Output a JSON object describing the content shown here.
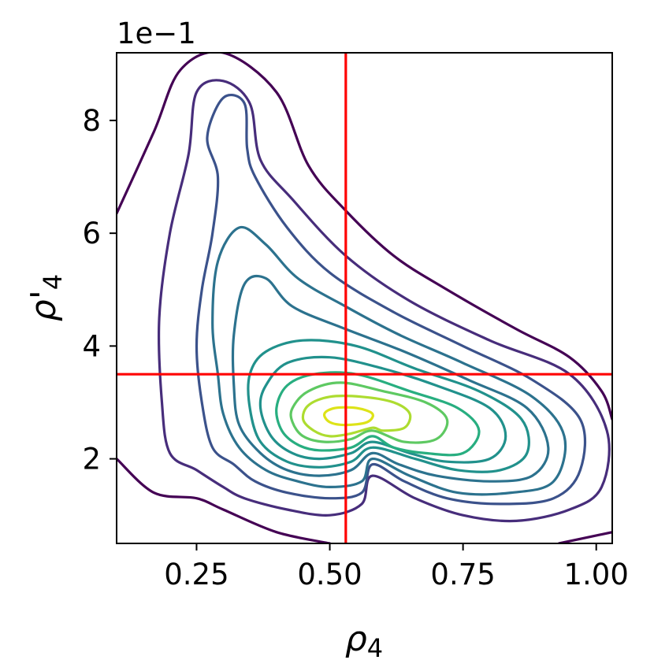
{
  "chart_data": {
    "type": "contour",
    "title": "",
    "xlabel": "ρ",
    "xlabel_sub": "4",
    "ylabel": "ρ'",
    "ylabel_sub": "4",
    "xlim": [
      0.1,
      1.03
    ],
    "ylim": [
      0.05,
      0.92
    ],
    "y_offset_label": "1e−1",
    "x_ticks": [
      {
        "value": 0.25,
        "label": "0.25"
      },
      {
        "value": 0.5,
        "label": "0.50"
      },
      {
        "value": 0.75,
        "label": "0.75"
      },
      {
        "value": 1.0,
        "label": "1.00"
      }
    ],
    "y_ticks": [
      {
        "value": 0.2,
        "label": "2"
      },
      {
        "value": 0.4,
        "label": "4"
      },
      {
        "value": 0.6,
        "label": "6"
      },
      {
        "value": 0.8,
        "label": "8"
      }
    ],
    "colormap": "viridis",
    "peak": {
      "x": 0.53,
      "y": 0.27
    },
    "reference_lines": {
      "x": 0.53,
      "y": 0.35,
      "color": "#ff0000"
    },
    "contour_colors": [
      "#440154",
      "#472d7b",
      "#3b528b",
      "#2c728e",
      "#21918c",
      "#28ae80",
      "#5ec962",
      "#addc30",
      "#dde318"
    ],
    "contours": [
      {
        "level": 1,
        "color": "#440154",
        "points": [
          [
            0.1,
            0.635
          ],
          [
            0.17,
            0.78
          ],
          [
            0.22,
            0.89
          ],
          [
            0.3,
            0.92
          ],
          [
            0.4,
            0.85
          ],
          [
            0.46,
            0.72
          ],
          [
            0.53,
            0.64
          ],
          [
            0.62,
            0.56
          ],
          [
            0.72,
            0.5
          ],
          [
            0.85,
            0.43
          ],
          [
            0.95,
            0.38
          ],
          [
            1.01,
            0.32
          ],
          [
            1.03,
            0.27
          ]
        ]
      },
      {
        "level": 1,
        "color": "#440154",
        "points": [
          [
            0.1,
            0.2
          ],
          [
            0.17,
            0.14
          ],
          [
            0.25,
            0.13
          ],
          [
            0.3,
            0.11
          ],
          [
            0.4,
            0.07
          ],
          [
            0.5,
            0.05
          ]
        ]
      },
      {
        "level": 1,
        "color": "#440154",
        "points": [
          [
            0.93,
            0.05
          ],
          [
            1.03,
            0.07
          ]
        ]
      },
      {
        "level": 2,
        "color": "#472d7b",
        "points": [
          [
            0.58,
            0.17
          ],
          [
            0.56,
            0.12
          ],
          [
            0.5,
            0.1
          ],
          [
            0.42,
            0.11
          ],
          [
            0.34,
            0.13
          ],
          [
            0.3,
            0.15
          ],
          [
            0.25,
            0.18
          ],
          [
            0.2,
            0.21
          ],
          [
            0.185,
            0.3
          ],
          [
            0.18,
            0.45
          ],
          [
            0.2,
            0.6
          ],
          [
            0.235,
            0.74
          ],
          [
            0.25,
            0.85
          ],
          [
            0.3,
            0.87
          ],
          [
            0.35,
            0.83
          ],
          [
            0.37,
            0.73
          ],
          [
            0.43,
            0.66
          ],
          [
            0.53,
            0.56
          ],
          [
            0.65,
            0.48
          ],
          [
            0.8,
            0.41
          ],
          [
            0.95,
            0.35
          ],
          [
            1.02,
            0.25
          ],
          [
            1.01,
            0.15
          ],
          [
            0.95,
            0.11
          ],
          [
            0.85,
            0.09
          ],
          [
            0.75,
            0.1
          ],
          [
            0.66,
            0.13
          ],
          [
            0.58,
            0.17
          ]
        ]
      },
      {
        "level": 3,
        "color": "#3b528b",
        "points": [
          [
            0.58,
            0.19
          ],
          [
            0.56,
            0.14
          ],
          [
            0.5,
            0.13
          ],
          [
            0.42,
            0.14
          ],
          [
            0.36,
            0.16
          ],
          [
            0.32,
            0.19
          ],
          [
            0.28,
            0.22
          ],
          [
            0.26,
            0.3
          ],
          [
            0.25,
            0.4
          ],
          [
            0.26,
            0.5
          ],
          [
            0.28,
            0.6
          ],
          [
            0.29,
            0.7
          ],
          [
            0.27,
            0.77
          ],
          [
            0.3,
            0.84
          ],
          [
            0.34,
            0.83
          ],
          [
            0.345,
            0.75
          ],
          [
            0.36,
            0.7
          ],
          [
            0.42,
            0.61
          ],
          [
            0.5,
            0.53
          ],
          [
            0.62,
            0.46
          ],
          [
            0.75,
            0.4
          ],
          [
            0.88,
            0.34
          ],
          [
            0.97,
            0.27
          ],
          [
            0.97,
            0.18
          ],
          [
            0.92,
            0.13
          ],
          [
            0.82,
            0.12
          ],
          [
            0.72,
            0.13
          ],
          [
            0.64,
            0.16
          ],
          [
            0.58,
            0.19
          ]
        ]
      },
      {
        "level": 4,
        "color": "#2c728e",
        "points": [
          [
            0.58,
            0.2
          ],
          [
            0.56,
            0.16
          ],
          [
            0.5,
            0.15
          ],
          [
            0.44,
            0.16
          ],
          [
            0.38,
            0.18
          ],
          [
            0.33,
            0.22
          ],
          [
            0.3,
            0.28
          ],
          [
            0.29,
            0.35
          ],
          [
            0.28,
            0.44
          ],
          [
            0.29,
            0.55
          ],
          [
            0.33,
            0.61
          ],
          [
            0.38,
            0.58
          ],
          [
            0.44,
            0.52
          ],
          [
            0.53,
            0.47
          ],
          [
            0.63,
            0.42
          ],
          [
            0.75,
            0.37
          ],
          [
            0.88,
            0.31
          ],
          [
            0.94,
            0.24
          ],
          [
            0.92,
            0.16
          ],
          [
            0.84,
            0.14
          ],
          [
            0.74,
            0.14
          ],
          [
            0.65,
            0.17
          ],
          [
            0.58,
            0.2
          ]
        ]
      },
      {
        "level": 5,
        "color": "#2c728e",
        "points": [
          [
            0.58,
            0.21
          ],
          [
            0.54,
            0.18
          ],
          [
            0.48,
            0.17
          ],
          [
            0.42,
            0.18
          ],
          [
            0.37,
            0.21
          ],
          [
            0.33,
            0.26
          ],
          [
            0.32,
            0.33
          ],
          [
            0.32,
            0.42
          ],
          [
            0.34,
            0.51
          ],
          [
            0.38,
            0.52
          ],
          [
            0.43,
            0.47
          ],
          [
            0.53,
            0.43
          ],
          [
            0.64,
            0.39
          ],
          [
            0.76,
            0.34
          ],
          [
            0.87,
            0.29
          ],
          [
            0.91,
            0.22
          ],
          [
            0.88,
            0.17
          ],
          [
            0.8,
            0.16
          ],
          [
            0.7,
            0.17
          ],
          [
            0.63,
            0.19
          ],
          [
            0.58,
            0.21
          ]
        ]
      },
      {
        "level": 6,
        "color": "#21918c",
        "points": [
          [
            0.58,
            0.22
          ],
          [
            0.54,
            0.195
          ],
          [
            0.48,
            0.185
          ],
          [
            0.42,
            0.195
          ],
          [
            0.37,
            0.23
          ],
          [
            0.35,
            0.29
          ],
          [
            0.35,
            0.35
          ],
          [
            0.38,
            0.39
          ],
          [
            0.45,
            0.41
          ],
          [
            0.55,
            0.4
          ],
          [
            0.66,
            0.36
          ],
          [
            0.78,
            0.32
          ],
          [
            0.86,
            0.27
          ],
          [
            0.87,
            0.21
          ],
          [
            0.82,
            0.18
          ],
          [
            0.74,
            0.18
          ],
          [
            0.66,
            0.2
          ],
          [
            0.58,
            0.22
          ]
        ]
      },
      {
        "level": 7,
        "color": "#21918c",
        "points": [
          [
            0.58,
            0.23
          ],
          [
            0.54,
            0.21
          ],
          [
            0.48,
            0.2
          ],
          [
            0.43,
            0.21
          ],
          [
            0.39,
            0.24
          ],
          [
            0.37,
            0.29
          ],
          [
            0.38,
            0.33
          ],
          [
            0.42,
            0.37
          ],
          [
            0.5,
            0.38
          ],
          [
            0.6,
            0.36
          ],
          [
            0.7,
            0.33
          ],
          [
            0.8,
            0.29
          ],
          [
            0.83,
            0.24
          ],
          [
            0.8,
            0.2
          ],
          [
            0.72,
            0.195
          ],
          [
            0.65,
            0.21
          ],
          [
            0.58,
            0.23
          ]
        ]
      },
      {
        "level": 8,
        "color": "#28ae80",
        "points": [
          [
            0.58,
            0.24
          ],
          [
            0.54,
            0.22
          ],
          [
            0.48,
            0.215
          ],
          [
            0.44,
            0.225
          ],
          [
            0.41,
            0.25
          ],
          [
            0.4,
            0.29
          ],
          [
            0.42,
            0.33
          ],
          [
            0.47,
            0.35
          ],
          [
            0.55,
            0.35
          ],
          [
            0.65,
            0.32
          ],
          [
            0.74,
            0.29
          ],
          [
            0.78,
            0.25
          ],
          [
            0.75,
            0.21
          ],
          [
            0.68,
            0.21
          ],
          [
            0.62,
            0.22
          ],
          [
            0.58,
            0.24
          ]
        ]
      },
      {
        "level": 9,
        "color": "#5ec962",
        "points": [
          [
            0.58,
            0.25
          ],
          [
            0.54,
            0.235
          ],
          [
            0.49,
            0.23
          ],
          [
            0.45,
            0.24
          ],
          [
            0.43,
            0.265
          ],
          [
            0.43,
            0.29
          ],
          [
            0.46,
            0.32
          ],
          [
            0.52,
            0.335
          ],
          [
            0.6,
            0.32
          ],
          [
            0.68,
            0.3
          ],
          [
            0.72,
            0.27
          ],
          [
            0.7,
            0.235
          ],
          [
            0.64,
            0.23
          ],
          [
            0.58,
            0.25
          ]
        ]
      },
      {
        "level": 10,
        "color": "#addc30",
        "points": [
          [
            0.58,
            0.255
          ],
          [
            0.54,
            0.245
          ],
          [
            0.5,
            0.24
          ],
          [
            0.47,
            0.25
          ],
          [
            0.45,
            0.27
          ],
          [
            0.46,
            0.295
          ],
          [
            0.5,
            0.31
          ],
          [
            0.56,
            0.31
          ],
          [
            0.62,
            0.3
          ],
          [
            0.65,
            0.28
          ],
          [
            0.64,
            0.255
          ],
          [
            0.6,
            0.25
          ],
          [
            0.58,
            0.255
          ]
        ]
      },
      {
        "level": 11,
        "color": "#dde318",
        "points": [
          [
            0.53,
            0.26
          ],
          [
            0.5,
            0.265
          ],
          [
            0.49,
            0.28
          ],
          [
            0.51,
            0.29
          ],
          [
            0.55,
            0.29
          ],
          [
            0.58,
            0.28
          ],
          [
            0.57,
            0.265
          ],
          [
            0.53,
            0.26
          ]
        ]
      }
    ]
  }
}
